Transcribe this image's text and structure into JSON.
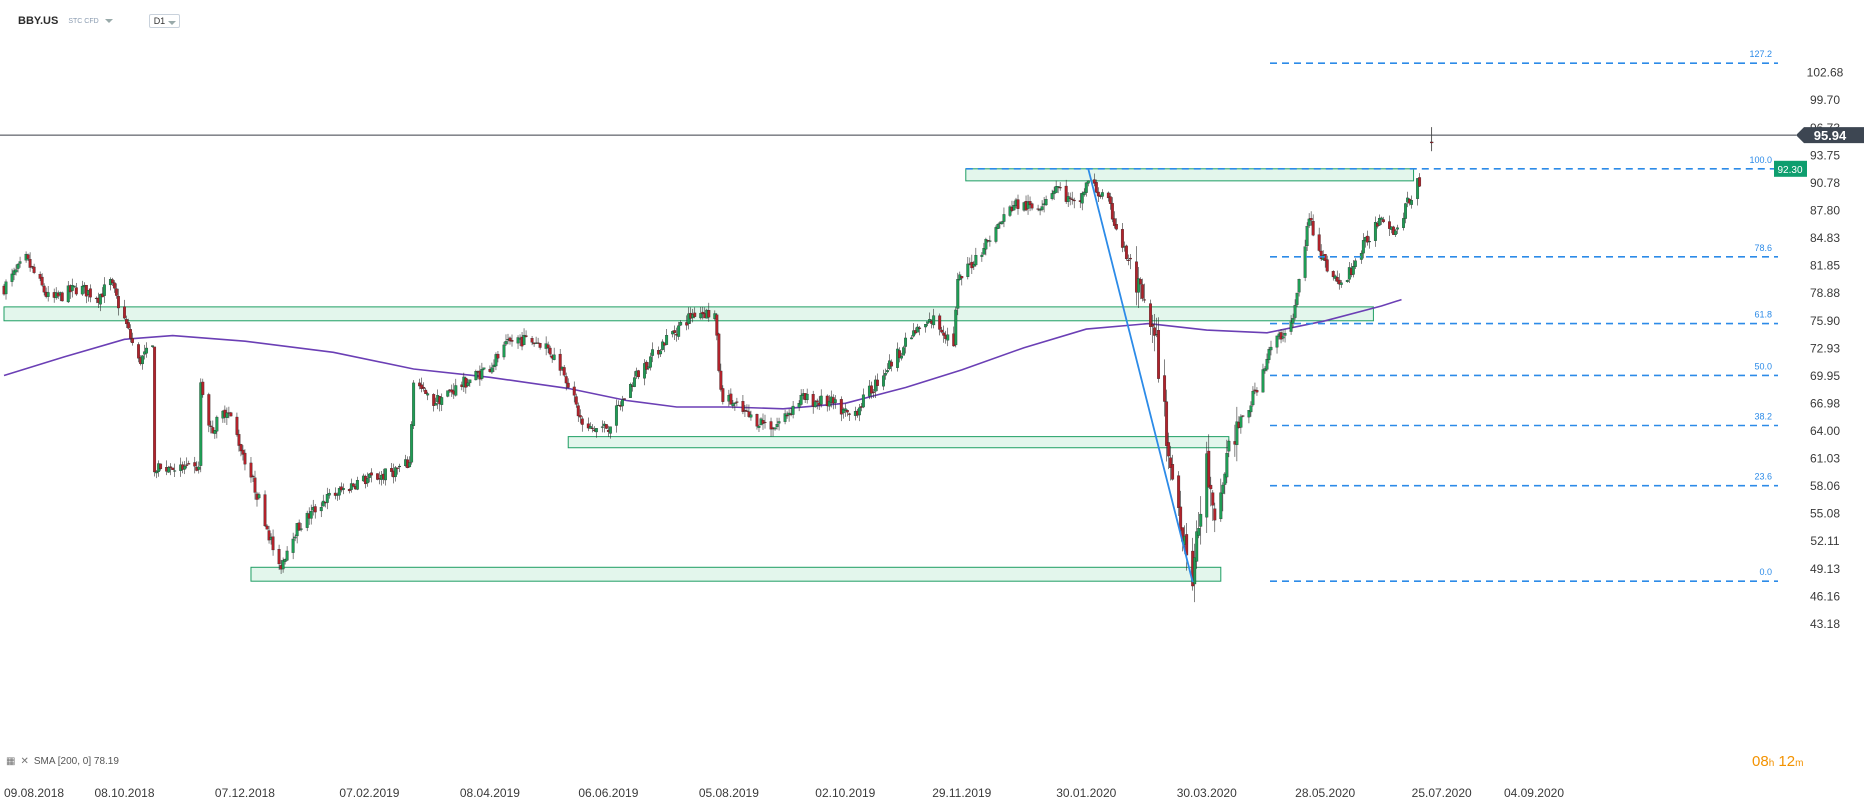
{
  "header": {
    "symbol": "BBY.US",
    "instrument_type": "STC CFD",
    "timeframe": "D1"
  },
  "indicator": {
    "label": "SMA [200, 0] 78.19"
  },
  "timer": {
    "hours": "08",
    "h_unit": "h",
    "minutes": "12",
    "m_unit": "m"
  },
  "colors": {
    "up": "#1f9d55",
    "down": "#b1222b",
    "sma": "#6b3fb5",
    "fib": "#2c8be8",
    "zone_fill": "#d9f3e6",
    "zone_stroke": "#1e9e63",
    "price_tag": "#3d4652",
    "level_tag": "#0e9e6e"
  },
  "chart_data": {
    "type": "candlestick",
    "x_axis_type": "date",
    "x_range": [
      "2018-08-09",
      "2020-09-04"
    ],
    "y_range": [
      43.18,
      105.66
    ],
    "x_ticks": [
      "09.08.2018",
      "08.10.2018",
      "07.12.2018",
      "07.02.2019",
      "08.04.2019",
      "06.06.2019",
      "05.08.2019",
      "02.10.2019",
      "29.11.2019",
      "30.01.2020",
      "30.03.2020",
      "28.05.2020",
      "25.07.2020",
      "04.09.2020"
    ],
    "y_ticks": [
      "102.68",
      "99.70",
      "96.73",
      "93.75",
      "90.78",
      "87.80",
      "84.83",
      "81.85",
      "78.88",
      "75.90",
      "72.93",
      "69.95",
      "66.98",
      "64.00",
      "61.03",
      "58.06",
      "55.08",
      "52.11",
      "49.13",
      "46.16",
      "43.18"
    ],
    "last_price": {
      "label": "95.94",
      "value": 95.94
    },
    "level_tag": {
      "label": "92.30",
      "value": 92.3
    },
    "fibonacci": {
      "levels": [
        {
          "label": "127.2",
          "value": 103.7
        },
        {
          "label": "100.0",
          "value": 92.3
        },
        {
          "label": "78.6",
          "value": 82.8
        },
        {
          "label": "61.8",
          "value": 75.6
        },
        {
          "label": "50.0",
          "value": 70.0
        },
        {
          "label": "38.2",
          "value": 64.6
        },
        {
          "label": "23.6",
          "value": 58.1
        },
        {
          "label": "0.0",
          "value": 47.8
        }
      ]
    },
    "trend_line": [
      {
        "date": "2020-01-31",
        "value": 92.3
      },
      {
        "date": "2020-03-23",
        "value": 47.7
      }
    ],
    "zones": [
      {
        "from": "2018-08-09",
        "to": "2020-06-21",
        "low": 75.9,
        "high": 77.4
      },
      {
        "from": "2019-12-01",
        "to": "2020-07-11",
        "low": 91.0,
        "high": 92.3
      },
      {
        "from": "2019-05-17",
        "to": "2020-04-10",
        "low": 62.2,
        "high": 63.4
      },
      {
        "from": "2018-12-10",
        "to": "2020-04-06",
        "low": 47.8,
        "high": 49.3
      }
    ],
    "sma": {
      "name": "SMA [200, 0]",
      "points": [
        {
          "date": "2018-08-09",
          "value": 70.0
        },
        {
          "date": "2018-09-08",
          "value": 72.0
        },
        {
          "date": "2018-10-08",
          "value": 73.9
        },
        {
          "date": "2018-11-01",
          "value": 74.3
        },
        {
          "date": "2018-12-07",
          "value": 73.7
        },
        {
          "date": "2019-01-20",
          "value": 72.5
        },
        {
          "date": "2019-03-01",
          "value": 70.7
        },
        {
          "date": "2019-04-08",
          "value": 69.8
        },
        {
          "date": "2019-05-17",
          "value": 68.6
        },
        {
          "date": "2019-06-15",
          "value": 67.3
        },
        {
          "date": "2019-07-10",
          "value": 66.6
        },
        {
          "date": "2019-08-05",
          "value": 66.6
        },
        {
          "date": "2019-09-01",
          "value": 66.4
        },
        {
          "date": "2019-10-02",
          "value": 67.0
        },
        {
          "date": "2019-11-01",
          "value": 68.7
        },
        {
          "date": "2019-11-29",
          "value": 70.6
        },
        {
          "date": "2019-12-30",
          "value": 73.0
        },
        {
          "date": "2020-01-30",
          "value": 75.0
        },
        {
          "date": "2020-03-01",
          "value": 75.6
        },
        {
          "date": "2020-03-30",
          "value": 74.9
        },
        {
          "date": "2020-04-29",
          "value": 74.6
        },
        {
          "date": "2020-05-28",
          "value": 75.9
        },
        {
          "date": "2020-06-25",
          "value": 77.5
        },
        {
          "date": "2020-07-05",
          "value": 78.19
        }
      ]
    },
    "price_path": [
      {
        "date": "2018-08-09",
        "value": 79.5
      },
      {
        "date": "2018-08-20",
        "value": 82.5
      },
      {
        "date": "2018-08-24",
        "value": 81.0
      },
      {
        "date": "2018-09-01",
        "value": 78.0
      },
      {
        "date": "2018-09-15",
        "value": 79.5
      },
      {
        "date": "2018-09-25",
        "value": 78.5
      },
      {
        "date": "2018-10-01",
        "value": 80.0
      },
      {
        "date": "2018-10-08",
        "value": 76.0
      },
      {
        "date": "2018-10-15",
        "value": 71.5
      },
      {
        "date": "2018-10-25",
        "value": 73.5
      },
      {
        "date": "2018-11-05",
        "value": 68.5
      },
      {
        "date": "2018-11-12",
        "value": 72.5
      },
      {
        "date": "2018-11-20",
        "value": 64.0
      },
      {
        "date": "2018-11-28",
        "value": 66.5
      },
      {
        "date": "2018-12-07",
        "value": 61.0
      },
      {
        "date": "2018-12-15",
        "value": 56.0
      },
      {
        "date": "2018-12-24",
        "value": 49.0
      },
      {
        "date": "2018-12-31",
        "value": 53.0
      },
      {
        "date": "2019-01-15",
        "value": 56.5
      },
      {
        "date": "2019-02-01",
        "value": 58.5
      },
      {
        "date": "2019-02-15",
        "value": 59.3
      },
      {
        "date": "2019-02-27",
        "value": 60.5
      },
      {
        "date": "2019-03-01",
        "value": 69.5
      },
      {
        "date": "2019-03-10",
        "value": 67.0
      },
      {
        "date": "2019-03-25",
        "value": 69.0
      },
      {
        "date": "2019-04-08",
        "value": 71.0
      },
      {
        "date": "2019-04-20",
        "value": 74.0
      },
      {
        "date": "2019-05-05",
        "value": 73.5
      },
      {
        "date": "2019-05-15",
        "value": 70.5
      },
      {
        "date": "2019-05-25",
        "value": 64.0
      },
      {
        "date": "2019-06-06",
        "value": 64.5
      },
      {
        "date": "2019-06-20",
        "value": 70.0
      },
      {
        "date": "2019-07-05",
        "value": 74.0
      },
      {
        "date": "2019-07-20",
        "value": 77.0
      },
      {
        "date": "2019-07-29",
        "value": 76.5
      },
      {
        "date": "2019-08-01",
        "value": 68.0
      },
      {
        "date": "2019-08-15",
        "value": 65.5
      },
      {
        "date": "2019-08-28",
        "value": 64.5
      },
      {
        "date": "2019-09-10",
        "value": 67.5
      },
      {
        "date": "2019-09-25",
        "value": 67.0
      },
      {
        "date": "2019-10-05",
        "value": 65.5
      },
      {
        "date": "2019-10-20",
        "value": 70.0
      },
      {
        "date": "2019-11-05",
        "value": 74.5
      },
      {
        "date": "2019-11-15",
        "value": 76.0
      },
      {
        "date": "2019-11-25",
        "value": 73.5
      },
      {
        "date": "2019-11-27",
        "value": 80.0
      },
      {
        "date": "2019-12-10",
        "value": 84.0
      },
      {
        "date": "2019-12-25",
        "value": 88.5
      },
      {
        "date": "2020-01-05",
        "value": 88.0
      },
      {
        "date": "2020-01-15",
        "value": 90.5
      },
      {
        "date": "2020-01-25",
        "value": 88.0
      },
      {
        "date": "2020-01-31",
        "value": 91.0
      },
      {
        "date": "2020-02-10",
        "value": 88.5
      },
      {
        "date": "2020-02-25",
        "value": 79.0
      },
      {
        "date": "2020-03-05",
        "value": 73.0
      },
      {
        "date": "2020-03-12",
        "value": 60.0
      },
      {
        "date": "2020-03-23",
        "value": 48.5
      },
      {
        "date": "2020-03-30",
        "value": 60.5
      },
      {
        "date": "2020-04-03",
        "value": 53.0
      },
      {
        "date": "2020-04-10",
        "value": 62.5
      },
      {
        "date": "2020-04-20",
        "value": 66.5
      },
      {
        "date": "2020-05-01",
        "value": 73.0
      },
      {
        "date": "2020-05-12",
        "value": 76.0
      },
      {
        "date": "2020-05-20",
        "value": 87.0
      },
      {
        "date": "2020-05-28",
        "value": 82.0
      },
      {
        "date": "2020-06-05",
        "value": 79.5
      },
      {
        "date": "2020-06-15",
        "value": 83.5
      },
      {
        "date": "2020-06-25",
        "value": 87.5
      },
      {
        "date": "2020-07-02",
        "value": 85.5
      },
      {
        "date": "2020-07-10",
        "value": 89.5
      },
      {
        "date": "2020-07-14",
        "value": 91.0
      }
    ],
    "gap_segment": {
      "from": "2018-10-22",
      "to": "2018-11-15"
    },
    "last_candle": {
      "date": "2020-07-20",
      "open": 95.2,
      "high": 96.8,
      "low": 94.2,
      "close": 95.94
    }
  }
}
